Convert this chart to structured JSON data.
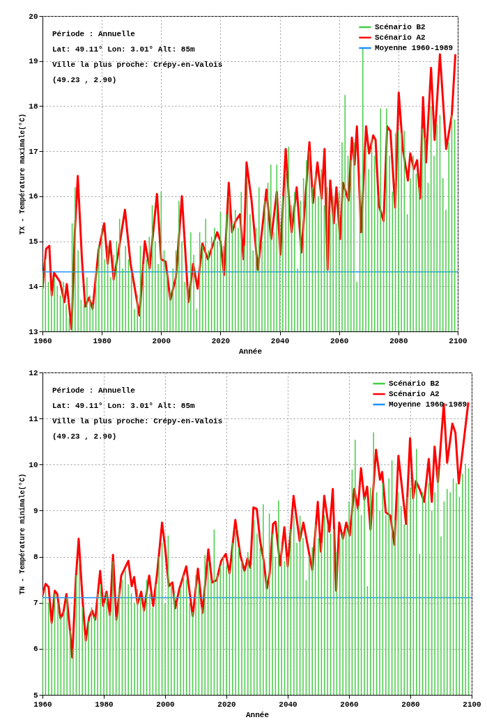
{
  "chart_data": [
    {
      "type": "line",
      "xlabel": "Année",
      "ylabel": "TX - Température maximale(°C)",
      "annotations": [
        "Période : Annuelle",
        "Lat: 49.11° Lon: 3.01° Alt: 85m",
        "Ville la plus proche: Crépy-en-Valois",
        "(49.23 , 2.90)"
      ],
      "xlim": [
        1960,
        2100
      ],
      "ylim": [
        13,
        20
      ],
      "xticks": [
        1960,
        1980,
        2000,
        2020,
        2040,
        2060,
        2080,
        2100
      ],
      "yticks": [
        13,
        14,
        15,
        16,
        17,
        18,
        19,
        20
      ],
      "grid": true,
      "legend": "top right",
      "series": [
        {
          "name": "Scénario B2",
          "type": "bar",
          "color": "#44cc44",
          "x": [
            1960,
            1961,
            1962,
            1963,
            1964,
            1965,
            1966,
            1967,
            1968,
            1969,
            1970,
            1971,
            1972,
            1973,
            1974,
            1975,
            1976,
            1977,
            1978,
            1979,
            1980,
            1981,
            1982,
            1983,
            1984,
            1985,
            1986,
            1987,
            1988,
            1989,
            1990,
            1991,
            1992,
            1993,
            1994,
            1995,
            1996,
            1997,
            1998,
            1999,
            2000,
            2001,
            2002,
            2003,
            2004,
            2005,
            2006,
            2007,
            2008,
            2009,
            2010,
            2011,
            2012,
            2013,
            2014,
            2015,
            2016,
            2017,
            2018,
            2019,
            2020,
            2021,
            2022,
            2023,
            2024,
            2025,
            2026,
            2027,
            2028,
            2029,
            2030,
            2031,
            2032,
            2033,
            2034,
            2035,
            2036,
            2037,
            2038,
            2039,
            2040,
            2041,
            2042,
            2043,
            2044,
            2045,
            2046,
            2047,
            2048,
            2049,
            2050,
            2051,
            2052,
            2053,
            2054,
            2055,
            2056,
            2057,
            2058,
            2059,
            2060,
            2061,
            2062,
            2063,
            2064,
            2065,
            2066,
            2067,
            2068,
            2069,
            2070,
            2071,
            2072,
            2073,
            2074,
            2075,
            2076,
            2077,
            2078,
            2079,
            2080,
            2081,
            2082,
            2083,
            2084,
            2085,
            2086,
            2087,
            2088,
            2089,
            2090,
            2091,
            2092,
            2093,
            2094,
            2095,
            2096,
            2097,
            2098,
            2099
          ],
          "values": [
            14.3,
            14.6,
            14.1,
            13.9,
            14.2,
            14.0,
            13.8,
            14.1,
            13.6,
            13.3,
            15.4,
            16.2,
            14.8,
            13.7,
            13.6,
            14.2,
            13.8,
            13.6,
            14.4,
            14.9,
            15.3,
            14.6,
            14.9,
            14.2,
            14.7,
            15.0,
            15.5,
            14.4,
            14.9,
            14.6,
            14.3,
            13.5,
            13.8,
            14.9,
            14.5,
            14.6,
            15.1,
            15.8,
            15.0,
            14.5,
            16.1,
            14.8,
            14.3,
            13.9,
            14.4,
            14.8,
            15.9,
            15.0,
            14.1,
            14.0,
            15.2,
            14.7,
            13.5,
            15.2,
            14.9,
            15.5,
            14.8,
            15.1,
            15.3,
            15.0,
            15.65,
            14.9,
            15.6,
            16.0,
            15.4,
            15.7,
            15.3,
            16.1,
            14.9,
            16.4,
            15.6,
            14.8,
            15.3,
            16.2,
            15.0,
            15.9,
            16.3,
            16.7,
            15.2,
            16.7,
            15.4,
            16.0,
            16.5,
            17.1,
            15.8,
            16.1,
            14.4,
            15.9,
            16.4,
            16.8,
            17.0,
            16.2,
            16.5,
            16.0,
            16.6,
            15.8,
            16.2,
            15.6,
            16.0,
            15.4,
            16.1,
            17.2,
            18.25,
            16.9,
            16.8,
            17.2,
            14.1,
            16.5,
            19.3,
            17.1,
            16.6,
            17.3,
            16.9,
            16.0,
            17.95,
            15.6,
            17.95,
            16.9,
            16.1,
            17.4,
            17.45,
            17.4,
            17.45,
            15.6,
            16.4,
            16.9,
            16.5,
            16.2,
            17.5,
            17.3,
            16.3,
            18.0,
            16.9,
            17.6,
            17.8,
            16.4,
            15.7,
            17.2,
            17.8,
            17.7
          ]
        },
        {
          "name": "Scénario A2",
          "color": "#ff0000",
          "x": [
            1960,
            1961.2,
            1962.3,
            1963.1,
            1963.9,
            1965.9,
            1967.4,
            1968.2,
            1969.8,
            1970.9,
            1971.9,
            1973.3,
            1974.4,
            1975.7,
            1976.9,
            1978.9,
            1980.8,
            1982,
            1982.8,
            1984,
            1985.7,
            1987.8,
            1989.7,
            1992.7,
            1994.5,
            1996.1,
            1998.6,
            2000,
            2001.5,
            2003.1,
            2005,
            2007,
            2009.2,
            2010.8,
            2012.3,
            2013.9,
            2015.8,
            2018.9,
            2020,
            2021.2,
            2022.8,
            2023.9,
            2025.1,
            2026.6,
            2027.8,
            2028.8,
            2030.5,
            2032.6,
            2035.5,
            2037.1,
            2039,
            2040.2,
            2042,
            2043.4,
            2044,
            2045.7,
            2047.3,
            2050,
            2051.2,
            2052.7,
            2054.1,
            2055.1,
            2056.1,
            2057,
            2058.2,
            2059.1,
            2060.3,
            2061.3,
            2063.2,
            2064.3,
            2065.2,
            2066,
            2067.4,
            2069.1,
            2070.1,
            2071.5,
            2072.3,
            2073.4,
            2075,
            2076.2,
            2077.3,
            2078.9,
            2080.1,
            2081.5,
            2083.2,
            2084,
            2085.2,
            2086.3,
            2087.3,
            2088.3,
            2089.3,
            2091,
            2092.2,
            2094,
            2096.1,
            2098,
            2099.2
          ],
          "values": [
            13.95,
            14.83,
            14.9,
            13.8,
            14.3,
            14.1,
            13.65,
            14.05,
            13.05,
            15.2,
            16.45,
            14.6,
            13.55,
            13.75,
            13.5,
            14.8,
            15.4,
            14.5,
            15.0,
            14.15,
            14.8,
            15.7,
            14.5,
            13.35,
            15.0,
            14.4,
            16.05,
            14.6,
            14.55,
            13.7,
            14.2,
            16.0,
            13.65,
            14.5,
            13.95,
            14.95,
            14.6,
            15.2,
            15.0,
            14.25,
            16.3,
            15.2,
            15.45,
            15.6,
            14.6,
            16.75,
            15.9,
            14.37,
            16.15,
            15.05,
            16.1,
            14.7,
            17.05,
            15.65,
            15.2,
            16.2,
            14.75,
            17.2,
            15.85,
            16.75,
            15.95,
            17.05,
            14.37,
            16.35,
            15.4,
            16.2,
            15.05,
            16.3,
            15.9,
            17.3,
            16.7,
            17.55,
            15.2,
            17.55,
            16.95,
            17.35,
            17.25,
            15.8,
            15.45,
            17.55,
            17.45,
            15.75,
            18.3,
            17.05,
            16.35,
            16.95,
            16.6,
            16.8,
            15.95,
            18.2,
            16.75,
            18.85,
            17.25,
            19.15,
            17.05,
            17.8,
            19.15
          ]
        }
      ],
      "ref_lines": [
        {
          "axis": "y",
          "value": 14.32,
          "label": "Moyenne 1960-1989",
          "color": "#1e90ff"
        }
      ]
    },
    {
      "type": "line",
      "xlabel": "Année",
      "ylabel": "TN - Température minimale(°C)",
      "annotations": [
        "Période : Annuelle",
        "Lat: 49.11° Lon: 3.01° Alt: 85m",
        "Ville la plus proche: Crépy-en-Valois",
        "(49.23 , 2.90)"
      ],
      "xlim": [
        1960,
        2100
      ],
      "ylim": [
        5,
        12
      ],
      "xticks": [
        1960,
        1980,
        2000,
        2020,
        2040,
        2060,
        2080,
        2100
      ],
      "yticks": [
        5,
        6,
        7,
        8,
        9,
        10,
        11,
        12
      ],
      "grid": true,
      "legend": "top right",
      "series": [
        {
          "name": "Scénario B2",
          "type": "bar",
          "color": "#44cc44",
          "x": [
            1960,
            1961,
            1962,
            1963,
            1964,
            1965,
            1966,
            1967,
            1968,
            1969,
            1970,
            1971,
            1972,
            1973,
            1974,
            1975,
            1976,
            1977,
            1978,
            1979,
            1980,
            1981,
            1982,
            1983,
            1984,
            1985,
            1986,
            1987,
            1988,
            1989,
            1990,
            1991,
            1992,
            1993,
            1994,
            1995,
            1996,
            1997,
            1998,
            1999,
            2000,
            2001,
            2002,
            2003,
            2004,
            2005,
            2006,
            2007,
            2008,
            2009,
            2010,
            2011,
            2012,
            2013,
            2014,
            2015,
            2016,
            2017,
            2018,
            2019,
            2020,
            2021,
            2022,
            2023,
            2024,
            2025,
            2026,
            2027,
            2028,
            2029,
            2030,
            2031,
            2032,
            2033,
            2034,
            2035,
            2036,
            2037,
            2038,
            2039,
            2040,
            2041,
            2042,
            2043,
            2044,
            2045,
            2046,
            2047,
            2048,
            2049,
            2050,
            2051,
            2052,
            2053,
            2054,
            2055,
            2056,
            2057,
            2058,
            2059,
            2060,
            2061,
            2062,
            2063,
            2064,
            2065,
            2066,
            2067,
            2068,
            2069,
            2070,
            2071,
            2072,
            2073,
            2074,
            2075,
            2076,
            2077,
            2078,
            2079,
            2080,
            2081,
            2082,
            2083,
            2084,
            2085,
            2086,
            2087,
            2088,
            2089,
            2090,
            2091,
            2092,
            2093,
            2094,
            2095,
            2096,
            2097,
            2098,
            2099
          ],
          "values": [
            7.1,
            7.3,
            7.0,
            6.6,
            7.2,
            7.0,
            6.7,
            6.8,
            7.1,
            6.4,
            6.0,
            7.6,
            7.9,
            6.9,
            6.3,
            6.6,
            6.9,
            6.7,
            7.2,
            7.4,
            7.0,
            7.2,
            6.8,
            7.9,
            6.7,
            7.3,
            7.5,
            7.7,
            7.4,
            7.2,
            7.0,
            7.3,
            7.1,
            6.9,
            7.5,
            7.2,
            6.9,
            7.4,
            8.0,
            8.3,
            6.99,
            8.46,
            7.4,
            7.2,
            7.0,
            7.3,
            7.6,
            7.5,
            7.0,
            6.8,
            7.6,
            7.4,
            6.9,
            8.04,
            7.9,
            7.5,
            8.59,
            7.6,
            7.8,
            8.0,
            7.8,
            7.7,
            8.3,
            8.61,
            8.2,
            7.9,
            7.7,
            8.1,
            7.81,
            8.8,
            8.5,
            8.2,
            9.14,
            7.6,
            8.94,
            8.5,
            8.0,
            9.22,
            8.3,
            7.9,
            8.0,
            8.6,
            8.89,
            8.3,
            8.89,
            8.4,
            7.49,
            8.0,
            8.2,
            8.7,
            8.4,
            8.3,
            8.9,
            8.7,
            8.5,
            8.6,
            8.1,
            8.4,
            8.5,
            8.6,
            9.2,
            9.89,
            10.54,
            9.1,
            8.9,
            9.3,
            7.36,
            9.5,
            10.7,
            9.4,
            9.0,
            9.6,
            8.9,
            9.7,
            10.09,
            8.8,
            9.4,
            9.1,
            8.7,
            9.3,
            9.5,
            9.7,
            10.34,
            8.06,
            9.4,
            9.2,
            9.6,
            9.0,
            9.4,
            9.9,
            8.44,
            9.2,
            9.47,
            9.4,
            9.7,
            9.6,
            9.3,
            9.8,
            10.02,
            9.92
          ]
        },
        {
          "name": "Scénario A2",
          "color": "#ff0000",
          "x": [
            1960,
            1961,
            1962,
            1963,
            1964,
            1964.8,
            1965.9,
            1966.8,
            1967.8,
            1969,
            1969.7,
            1970.9,
            1971.8,
            1973.1,
            1974.1,
            1975.2,
            1976.2,
            1977.2,
            1978.8,
            1979.8,
            1980.9,
            1982,
            1983,
            1984.1,
            1985.7,
            1988,
            1989.1,
            1989.9,
            1991,
            1992.2,
            1993.1,
            1994.8,
            1996.1,
            1997.4,
            1999,
            2000,
            2001.2,
            2002.4,
            2003.3,
            2004.6,
            2006.9,
            2009,
            2010.7,
            2012.2,
            2014.1,
            2015.3,
            2016.8,
            2018.3,
            2019.8,
            2021,
            2022.9,
            2024.5,
            2025.9,
            2026.9,
            2027.8,
            2028.8,
            2029.9,
            2031,
            2032.2,
            2033.2,
            2034.1,
            2035.2,
            2036,
            2037.5,
            2038.9,
            2040,
            2041.9,
            2043.9,
            2045.1,
            2048,
            2049.8,
            2050.8,
            2051.9,
            2053.6,
            2054.7,
            2055.8,
            2056.8,
            2058,
            2059.1,
            2060.2,
            2061.7,
            2062.9,
            2063.9,
            2065,
            2065.9,
            2067,
            2068.8,
            2070.1,
            2070.8,
            2072,
            2073.5,
            2074.8,
            2076.1,
            2078.6,
            2079.9,
            2080.9,
            2081.8,
            2083,
            2084.5,
            2086,
            2087,
            2087.9,
            2089,
            2090.9,
            2092,
            2093.7,
            2094.7,
            2095.8,
            2098.9
          ],
          "values": [
            7.16,
            7.41,
            7.34,
            6.56,
            7.26,
            7.19,
            6.66,
            6.78,
            7.19,
            6.38,
            5.81,
            7.54,
            8.39,
            7.04,
            6.18,
            6.68,
            6.83,
            6.63,
            7.69,
            6.93,
            7.24,
            6.73,
            8.04,
            6.63,
            7.59,
            7.91,
            7.36,
            7.56,
            6.98,
            7.24,
            6.83,
            7.59,
            6.93,
            7.64,
            8.74,
            8.19,
            7.36,
            7.44,
            6.88,
            7.29,
            7.79,
            6.71,
            7.74,
            6.78,
            8.16,
            7.44,
            7.49,
            7.91,
            8.06,
            7.64,
            8.8,
            8.04,
            7.69,
            7.96,
            7.76,
            9.07,
            9.04,
            8.34,
            7.89,
            7.31,
            7.64,
            8.71,
            8.76,
            7.81,
            8.64,
            7.79,
            9.32,
            8.34,
            8.74,
            7.71,
            9.19,
            8.11,
            9.32,
            8.54,
            9.47,
            7.26,
            8.74,
            8.39,
            8.74,
            8.46,
            9.47,
            9.04,
            9.92,
            9.24,
            9.52,
            8.59,
            10.32,
            9.67,
            9.84,
            8.96,
            8.89,
            8.26,
            10.19,
            8.71,
            10.57,
            9.27,
            9.64,
            9.47,
            9.19,
            10.12,
            9.19,
            10.39,
            9.62,
            11.32,
            10.04,
            10.89,
            10.69,
            9.59,
            11.35
          ]
        }
      ],
      "ref_lines": [
        {
          "axis": "y",
          "value": 7.11,
          "label": "Moyenne 1960-1989",
          "color": "#1e90ff"
        }
      ]
    }
  ]
}
